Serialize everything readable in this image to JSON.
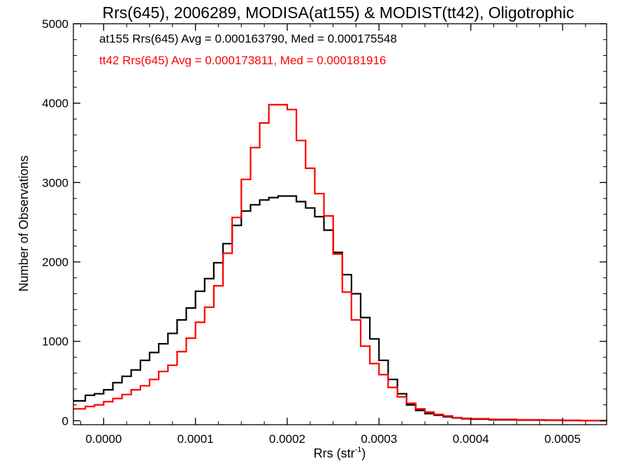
{
  "chart_data": {
    "type": "line",
    "title": "Rrs(645), 2006289, MODISA(at155) & MODIST(tt42), Oligotrophic",
    "xlabel_main": "Rrs (str",
    "xlabel_sup": "-1",
    "xlabel_close": ")",
    "ylabel": "Number of Observations",
    "xlim": [
      -3.3e-05,
      0.000548
    ],
    "ylim": [
      -50,
      5000
    ],
    "x_ticks": [
      0.0,
      0.0001,
      0.0002,
      0.0003,
      0.0004,
      0.0005
    ],
    "x_tick_labels": [
      "0.0000",
      "0.0001",
      "0.0002",
      "0.0003",
      "0.0004",
      "0.0005"
    ],
    "y_ticks": [
      0,
      1000,
      2000,
      3000,
      4000,
      5000
    ],
    "y_tick_labels": [
      "0",
      "1000",
      "2000",
      "3000",
      "4000",
      "5000"
    ],
    "grid": false,
    "series": [
      {
        "name": "at155",
        "label": "at155 Rrs(645) Avg = 0.000163790, Med = 0.000175548",
        "color": "#000000",
        "x": [
          -3.3e-05,
          -2e-05,
          -1e-05,
          0.0,
          1e-05,
          2e-05,
          3e-05,
          4e-05,
          5e-05,
          6e-05,
          7e-05,
          8e-05,
          9e-05,
          0.0001,
          0.00011,
          0.00012,
          0.00013,
          0.00014,
          0.00015,
          0.00016,
          0.00017,
          0.00018,
          0.00019,
          0.0002,
          0.00021,
          0.00022,
          0.00023,
          0.00024,
          0.00025,
          0.00026,
          0.00027,
          0.00028,
          0.00029,
          0.0003,
          0.00031,
          0.00032,
          0.00033,
          0.00034,
          0.00035,
          0.00036,
          0.00037,
          0.00038,
          0.00039,
          0.0004,
          0.00042,
          0.00045,
          0.00048,
          0.0005,
          0.00052,
          0.000548
        ],
        "y": [
          250,
          320,
          340,
          390,
          480,
          560,
          640,
          760,
          860,
          970,
          1100,
          1270,
          1420,
          1630,
          1790,
          1990,
          2230,
          2460,
          2640,
          2720,
          2780,
          2810,
          2830,
          2830,
          2760,
          2680,
          2570,
          2400,
          2120,
          1840,
          1600,
          1300,
          1030,
          760,
          520,
          340,
          200,
          130,
          90,
          70,
          50,
          35,
          25,
          20,
          12,
          8,
          5,
          3,
          2,
          1
        ]
      },
      {
        "name": "tt42",
        "label": "tt42 Rrs(645) Avg = 0.000173811, Med = 0.000181916",
        "color": "#ff0000",
        "x": [
          -3.3e-05,
          -2e-05,
          -1e-05,
          0.0,
          1e-05,
          2e-05,
          3e-05,
          4e-05,
          5e-05,
          6e-05,
          7e-05,
          8e-05,
          9e-05,
          0.0001,
          0.00011,
          0.00012,
          0.00013,
          0.00014,
          0.00015,
          0.00016,
          0.00017,
          0.00018,
          0.00019,
          0.0002,
          0.00021,
          0.00022,
          0.00023,
          0.00024,
          0.00025,
          0.00026,
          0.00027,
          0.00028,
          0.00029,
          0.0003,
          0.00031,
          0.00032,
          0.00033,
          0.00034,
          0.00035,
          0.00036,
          0.00037,
          0.00038,
          0.00039,
          0.0004,
          0.00042,
          0.00045,
          0.00048,
          0.0005,
          0.00052,
          0.000548
        ],
        "y": [
          150,
          180,
          200,
          240,
          280,
          330,
          390,
          440,
          520,
          620,
          700,
          870,
          1040,
          1240,
          1430,
          1700,
          2110,
          2560,
          3040,
          3440,
          3750,
          3980,
          3980,
          3920,
          3530,
          3180,
          2860,
          2580,
          2100,
          1620,
          1270,
          940,
          720,
          580,
          420,
          300,
          220,
          150,
          110,
          80,
          60,
          40,
          30,
          25,
          18,
          12,
          8,
          5,
          3,
          2
        ]
      }
    ]
  }
}
